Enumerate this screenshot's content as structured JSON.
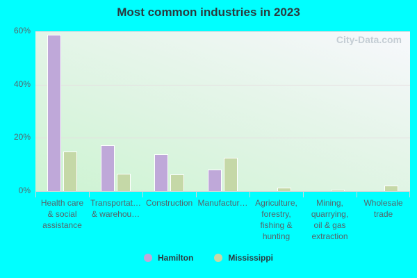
{
  "title": "Most common industries in 2023",
  "watermark": "City-Data.com",
  "colors": {
    "Hamilton": "#bfa8d9",
    "Mississippi": "#c5d8a7",
    "background": "#00ffff"
  },
  "legend": [
    {
      "label": "Hamilton",
      "color": "#bfa8d9"
    },
    {
      "label": "Mississippi",
      "color": "#c5d8a7"
    }
  ],
  "y_ticks": [
    "0%",
    "20%",
    "40%",
    "60%"
  ],
  "chart_data": {
    "type": "bar",
    "title": "Most common industries in 2023",
    "xlabel": "",
    "ylabel": "",
    "ylim": [
      0,
      60
    ],
    "grid": true,
    "legend_position": "bottom",
    "categories": [
      "Health care & social assistance",
      "Transportation & warehousing",
      "Construction",
      "Manufacturing",
      "Agriculture, forestry, fishing & hunting",
      "Mining, quarrying, oil & gas extraction",
      "Wholesale trade"
    ],
    "category_labels_displayed": [
      "Health care\n& social\nassistance",
      "Transportat…\n& warehou…",
      "Construction",
      "Manufactur…",
      "Agriculture,\nforestry,\nfishing &\nhunting",
      "Mining,\nquarrying,\noil & gas\nextraction",
      "Wholesale\ntrade"
    ],
    "series": [
      {
        "name": "Hamilton",
        "values": [
          58.7,
          17.2,
          13.8,
          8.0,
          0,
          0,
          0
        ]
      },
      {
        "name": "Mississippi",
        "values": [
          14.8,
          6.5,
          6.2,
          12.5,
          1.2,
          0.4,
          2.1
        ]
      }
    ]
  }
}
